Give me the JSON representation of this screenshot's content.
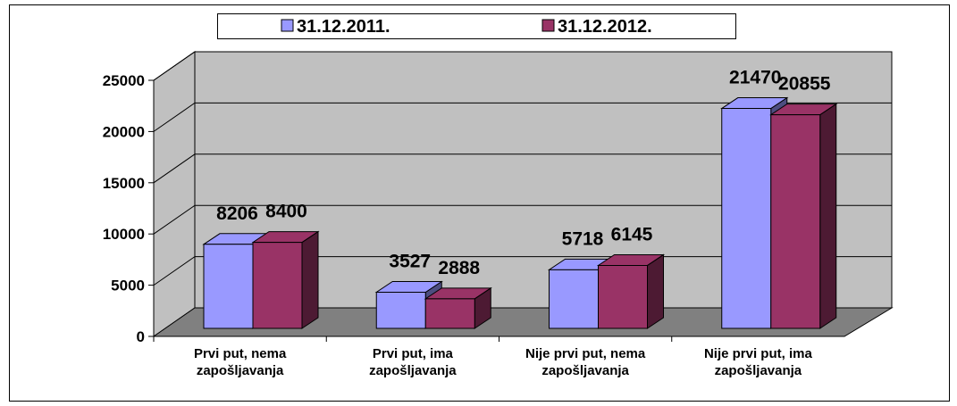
{
  "chart_data": {
    "type": "bar3d",
    "categories": [
      "Prvi put, nema zapošljavanja",
      "Prvi put, ima zapošljavanja",
      "Nije prvi put, nema zapošljavanja",
      "Nije prvi put, ima zapošljavanja"
    ],
    "series": [
      {
        "name": "31.12.2011.",
        "color": "#9999ff",
        "side": "#4d4d80",
        "values": [
          8206,
          3527,
          5718,
          21470
        ]
      },
      {
        "name": "31.12.2012.",
        "color": "#993366",
        "side": "#4d1a33",
        "values": [
          8400,
          2888,
          6145,
          20855
        ]
      }
    ],
    "ylim": [
      0,
      25000
    ],
    "yticks": [
      0,
      5000,
      10000,
      15000,
      20000,
      25000
    ],
    "grid": true,
    "legend": "top"
  }
}
